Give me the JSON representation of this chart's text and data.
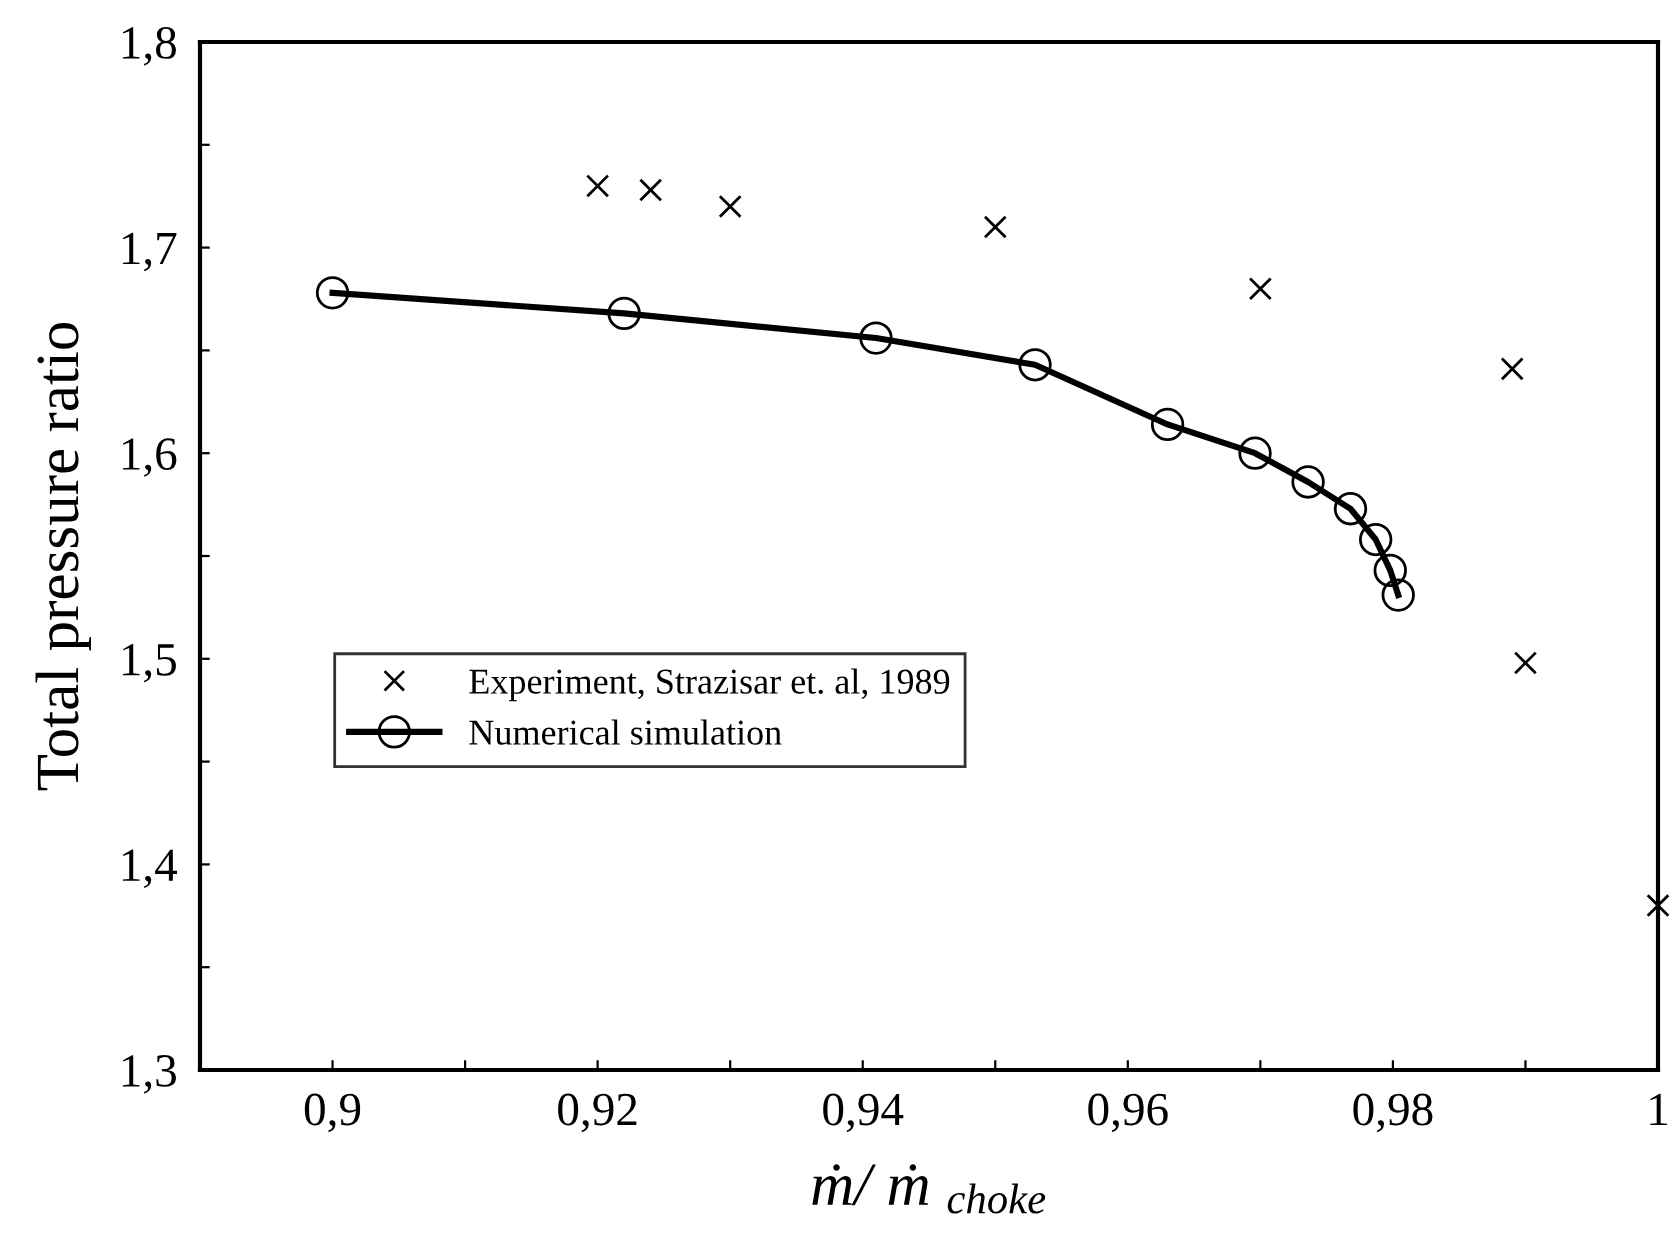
{
  "chart_data": {
    "type": "scatter",
    "xlabel": "ṁ/ ṁ $_{choke}$",
    "ylabel": "Total pressure ratio",
    "series": [
      {
        "name": "Experiment, Strazisar et. al, 1989",
        "marker": "cross",
        "color": "#000000",
        "x": [
          0.92,
          0.924,
          0.93,
          0.95,
          0.97,
          0.989,
          0.99,
          1.0
        ],
        "values": [
          1.73,
          1.728,
          1.72,
          1.71,
          1.68,
          1.641,
          1.498,
          1.38
        ]
      },
      {
        "name": "Numerical simulation",
        "type": "line",
        "marker": "circle",
        "line_style": "solid",
        "color": "#000000",
        "x": [
          0.9,
          0.922,
          0.941,
          0.953,
          0.963,
          0.9696,
          0.9736,
          0.9768,
          0.9787,
          0.9798,
          0.9804
        ],
        "values": [
          1.678,
          1.668,
          1.656,
          1.643,
          1.614,
          1.6,
          1.586,
          1.573,
          1.558,
          1.543,
          1.531
        ]
      }
    ],
    "xlim": [
      0.89,
      1.0
    ],
    "ylim": [
      1.3,
      1.8
    ],
    "xticks": [
      {
        "value": 0.9,
        "label": "0,9"
      },
      {
        "value": 0.91,
        "label": null
      },
      {
        "value": 0.92,
        "label": "0,92"
      },
      {
        "value": 0.93,
        "label": null
      },
      {
        "value": 0.94,
        "label": "0,94"
      },
      {
        "value": 0.95,
        "label": null
      },
      {
        "value": 0.96,
        "label": "0,96"
      },
      {
        "value": 0.97,
        "label": null
      },
      {
        "value": 0.98,
        "label": "0,98"
      },
      {
        "value": 0.99,
        "label": null
      },
      {
        "value": 1.0,
        "label": "1"
      }
    ],
    "yticks": [
      {
        "value": 1.3,
        "label": "1,3"
      },
      {
        "value": 1.35,
        "label": null
      },
      {
        "value": 1.4,
        "label": "1,4"
      },
      {
        "value": 1.45,
        "label": null
      },
      {
        "value": 1.5,
        "label": "1,5"
      },
      {
        "value": 1.55,
        "label": null
      },
      {
        "value": 1.6,
        "label": "1,6"
      },
      {
        "value": 1.65,
        "label": null
      },
      {
        "value": 1.7,
        "label": "1,7"
      },
      {
        "value": 1.75,
        "label": null
      },
      {
        "value": 1.8,
        "label": "1,8"
      }
    ],
    "grid": false,
    "legend": "left"
  }
}
